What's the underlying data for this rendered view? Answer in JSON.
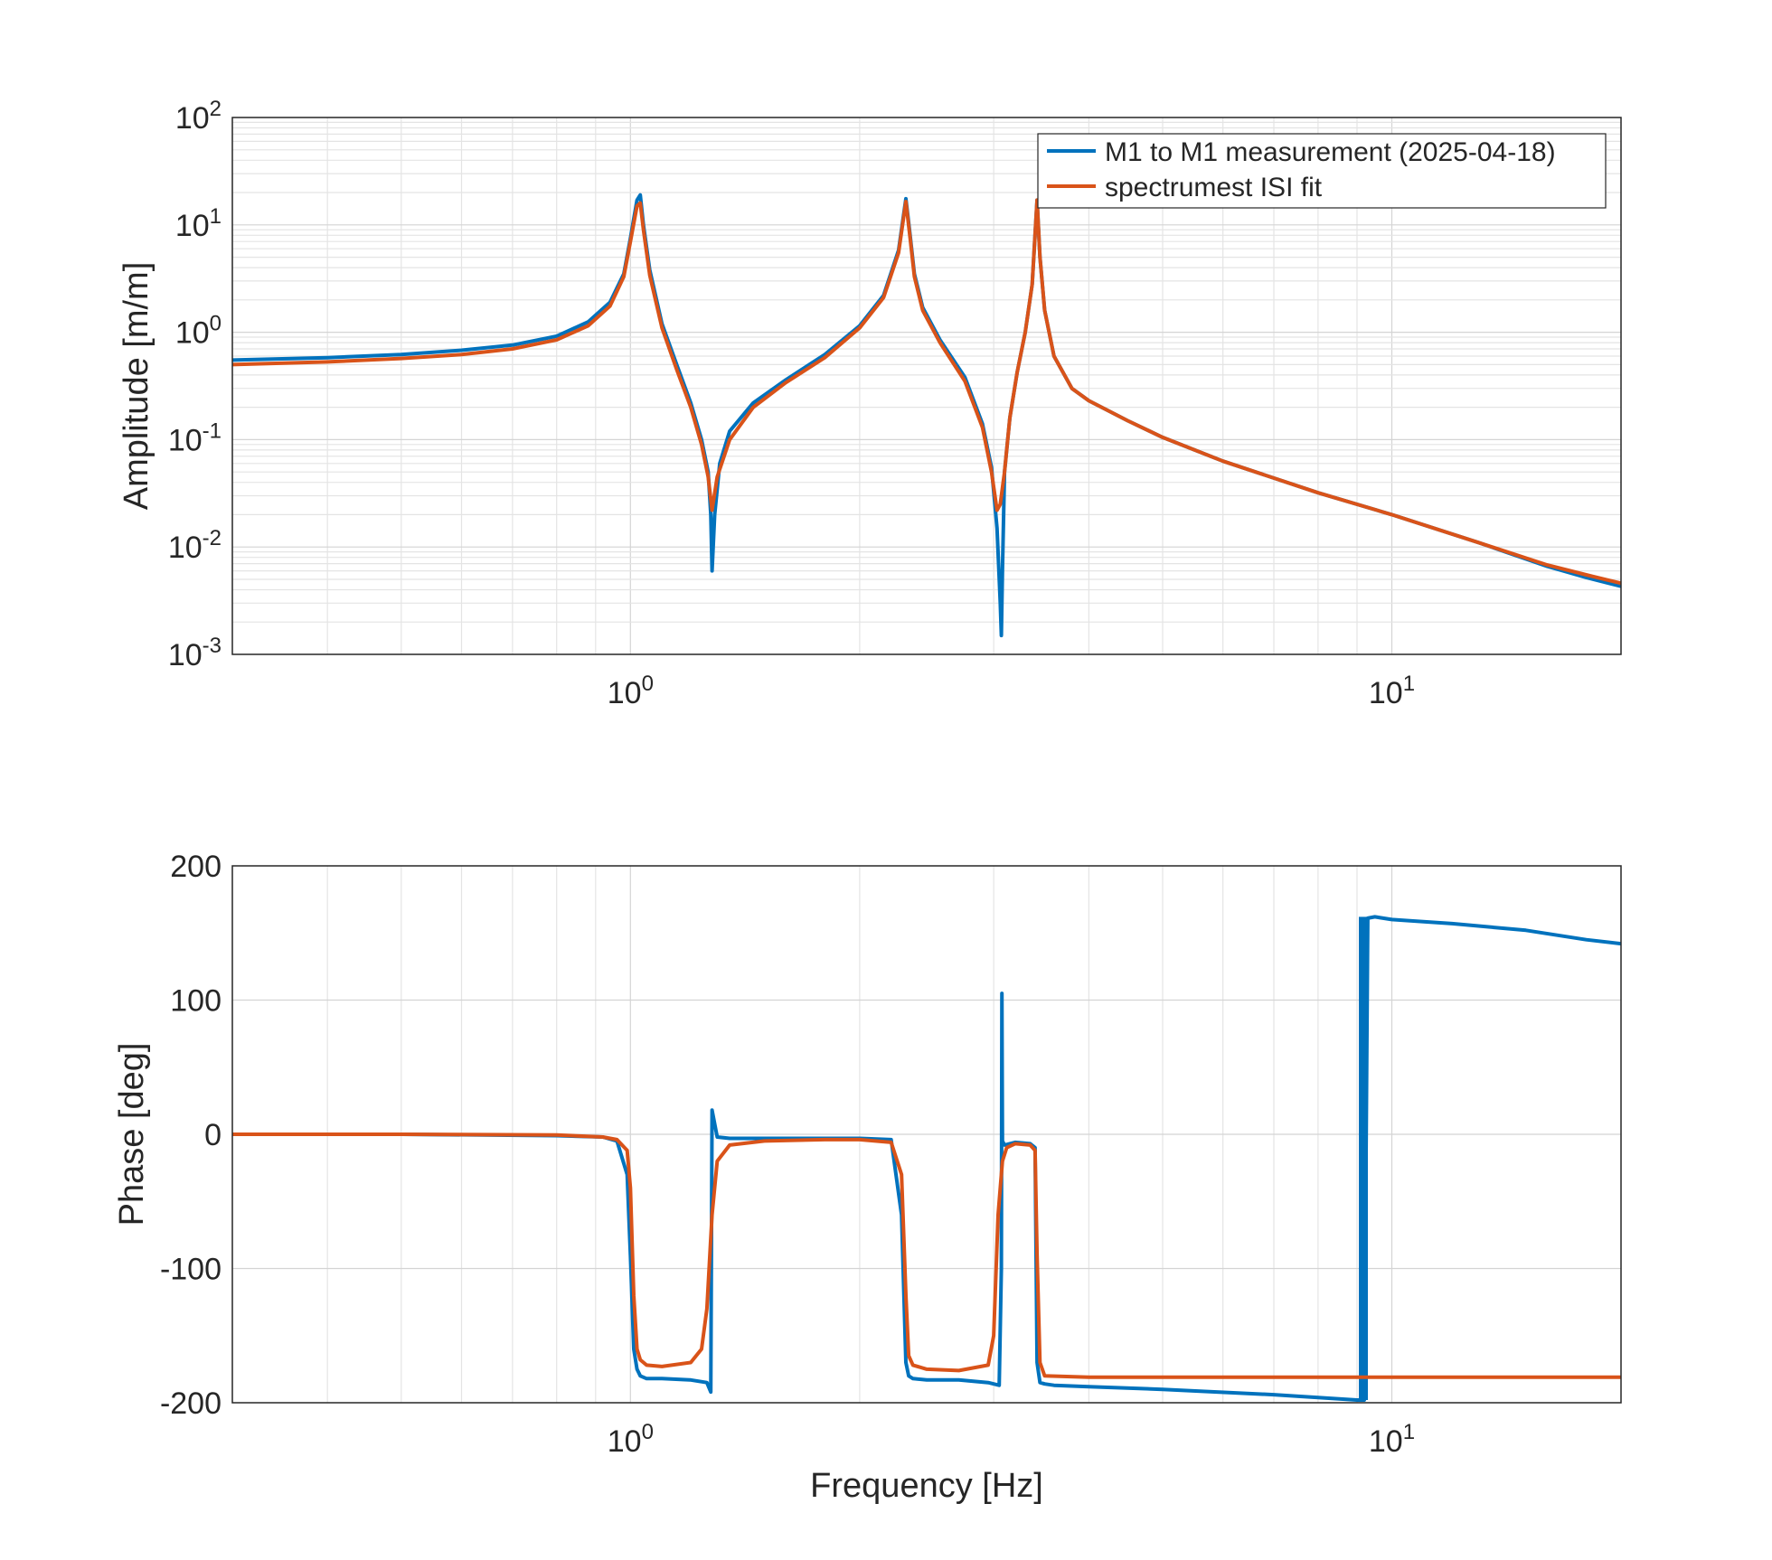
{
  "chart_data": [
    {
      "type": "line",
      "scale": {
        "x": "log",
        "y": "log"
      },
      "xlim": [
        0.3,
        20
      ],
      "ylim": [
        0.001,
        100
      ],
      "xlabel": "",
      "ylabel": "Amplitude [m/m]",
      "xticks": [
        1,
        10
      ],
      "xtick_labels": [
        {
          "base": "10",
          "exp": "0"
        },
        {
          "base": "10",
          "exp": "1"
        }
      ],
      "yticks": [
        0.001,
        0.01,
        0.1,
        1,
        10,
        100
      ],
      "ytick_labels": [
        {
          "base": "10",
          "exp": "-3"
        },
        {
          "base": "10",
          "exp": "-2"
        },
        {
          "base": "10",
          "exp": "-1"
        },
        {
          "base": "10",
          "exp": "0"
        },
        {
          "base": "10",
          "exp": "1"
        },
        {
          "base": "10",
          "exp": "2"
        }
      ],
      "grid": true,
      "minor_grid": true,
      "legend_position": "top-right",
      "series": [
        {
          "name": "M1 to M1 measurement (2025-04-18)",
          "color": "#0072BD",
          "x": [
            0.3,
            0.4,
            0.5,
            0.6,
            0.7,
            0.8,
            0.88,
            0.94,
            0.98,
            1.0,
            1.02,
            1.03,
            1.04,
            1.06,
            1.1,
            1.15,
            1.2,
            1.24,
            1.265,
            1.275,
            1.28,
            1.29,
            1.31,
            1.35,
            1.45,
            1.6,
            1.8,
            2.0,
            2.15,
            2.25,
            2.3,
            2.33,
            2.36,
            2.42,
            2.55,
            2.75,
            2.9,
            2.98,
            3.03,
            3.06,
            3.07,
            3.08,
            3.1,
            3.15,
            3.22,
            3.3,
            3.37,
            3.42,
            3.45,
            3.5,
            3.6,
            3.8,
            4.0,
            4.5,
            5.0,
            6.0,
            8.0,
            10.0,
            13.0,
            16.0,
            18.0,
            20.0
          ],
          "values": [
            0.55,
            0.58,
            0.62,
            0.68,
            0.76,
            0.92,
            1.25,
            1.9,
            3.5,
            7.5,
            17,
            19,
            10,
            3.8,
            1.2,
            0.5,
            0.22,
            0.1,
            0.05,
            0.02,
            0.006,
            0.02,
            0.06,
            0.12,
            0.22,
            0.36,
            0.62,
            1.15,
            2.2,
            5.8,
            17.5,
            8.0,
            3.5,
            1.7,
            0.85,
            0.38,
            0.14,
            0.055,
            0.015,
            0.003,
            0.0015,
            0.006,
            0.05,
            0.16,
            0.42,
            1.0,
            2.8,
            17,
            5.0,
            1.6,
            0.6,
            0.3,
            0.23,
            0.15,
            0.105,
            0.063,
            0.032,
            0.02,
            0.011,
            0.0066,
            0.0052,
            0.0043
          ]
        },
        {
          "name": "spectrumest ISI fit",
          "color": "#D95319",
          "x": [
            0.3,
            0.4,
            0.5,
            0.6,
            0.7,
            0.8,
            0.88,
            0.94,
            0.98,
            1.0,
            1.02,
            1.03,
            1.04,
            1.06,
            1.1,
            1.15,
            1.2,
            1.24,
            1.265,
            1.28,
            1.3,
            1.35,
            1.45,
            1.6,
            1.8,
            2.0,
            2.15,
            2.25,
            2.3,
            2.33,
            2.36,
            2.42,
            2.55,
            2.75,
            2.9,
            2.98,
            3.03,
            3.06,
            3.1,
            3.15,
            3.22,
            3.3,
            3.37,
            3.42,
            3.45,
            3.5,
            3.6,
            3.8,
            4.0,
            4.5,
            5.0,
            6.0,
            8.0,
            10.0,
            13.0,
            16.0,
            18.0,
            20.0
          ],
          "values": [
            0.5,
            0.53,
            0.57,
            0.62,
            0.7,
            0.85,
            1.15,
            1.75,
            3.3,
            7.0,
            15,
            16,
            9,
            3.4,
            1.1,
            0.45,
            0.2,
            0.09,
            0.045,
            0.022,
            0.045,
            0.1,
            0.2,
            0.34,
            0.58,
            1.1,
            2.1,
            5.5,
            16.5,
            7.5,
            3.3,
            1.6,
            0.8,
            0.35,
            0.13,
            0.05,
            0.022,
            0.025,
            0.05,
            0.16,
            0.42,
            1.0,
            2.8,
            17,
            5.0,
            1.6,
            0.6,
            0.3,
            0.23,
            0.15,
            0.105,
            0.063,
            0.032,
            0.02,
            0.011,
            0.0068,
            0.0055,
            0.0046
          ]
        }
      ]
    },
    {
      "type": "line",
      "scale": {
        "x": "log",
        "y": "linear"
      },
      "xlim": [
        0.3,
        20
      ],
      "ylim": [
        -200,
        200
      ],
      "xlabel": "Frequency [Hz]",
      "ylabel": "Phase [deg]",
      "xticks": [
        1,
        10
      ],
      "xtick_labels": [
        {
          "base": "10",
          "exp": "0"
        },
        {
          "base": "10",
          "exp": "1"
        }
      ],
      "yticks": [
        -200,
        -100,
        0,
        100,
        200
      ],
      "ytick_labels": [
        "-200",
        "-100",
        "0",
        "100",
        "200"
      ],
      "grid": true,
      "minor_grid": false,
      "series": [
        {
          "name": "M1 to M1 measurement (2025-04-18)",
          "color": "#0072BD",
          "x": [
            0.3,
            0.5,
            0.8,
            0.92,
            0.96,
            0.99,
            1.0,
            1.01,
            1.02,
            1.03,
            1.05,
            1.1,
            1.2,
            1.26,
            1.275,
            1.28,
            1.3,
            1.35,
            1.5,
            1.8,
            2.0,
            2.2,
            2.27,
            2.3,
            2.32,
            2.35,
            2.45,
            2.7,
            2.95,
            3.05,
            3.07,
            3.075,
            3.08,
            3.1,
            3.2,
            3.35,
            3.4,
            3.42,
            3.45,
            3.5,
            3.6,
            4.0,
            5.0,
            7.0,
            9.0,
            9.2,
            9.3,
            9.5,
            10.0,
            12.0,
            15.0,
            18.0,
            20.0
          ],
          "values": [
            0,
            0,
            -1,
            -2,
            -5,
            -30,
            -90,
            -160,
            -175,
            -180,
            -182,
            -182,
            -183,
            -185,
            -192,
            18,
            -2,
            -3,
            -3,
            -3,
            -3,
            -4,
            -60,
            -170,
            -180,
            -182,
            -183,
            -183,
            -185,
            -187,
            -100,
            105,
            -5,
            -8,
            -6,
            -7,
            -10,
            -170,
            -185,
            -186,
            -187,
            -188,
            -190,
            -194,
            -198,
            -198,
            161,
            162,
            160,
            157,
            152,
            145,
            142
          ]
        },
        {
          "name": "spectrumest ISI fit",
          "color": "#D95319",
          "x": [
            0.3,
            0.5,
            0.8,
            0.92,
            0.96,
            0.99,
            1.0,
            1.01,
            1.02,
            1.03,
            1.05,
            1.1,
            1.2,
            1.24,
            1.26,
            1.28,
            1.3,
            1.35,
            1.5,
            1.8,
            2.0,
            2.2,
            2.27,
            2.3,
            2.32,
            2.35,
            2.45,
            2.7,
            2.95,
            3.0,
            3.04,
            3.08,
            3.12,
            3.2,
            3.35,
            3.4,
            3.42,
            3.45,
            3.5,
            4.0,
            6.0,
            10.0,
            15.0,
            20.0
          ],
          "values": [
            0,
            0,
            -0.5,
            -2,
            -4,
            -12,
            -40,
            -120,
            -160,
            -168,
            -172,
            -173,
            -170,
            -160,
            -130,
            -60,
            -20,
            -8,
            -5,
            -4,
            -4,
            -6,
            -30,
            -120,
            -165,
            -172,
            -175,
            -176,
            -172,
            -150,
            -60,
            -20,
            -10,
            -7,
            -8,
            -12,
            -90,
            -170,
            -180,
            -181,
            -181,
            -181,
            -181,
            -181
          ]
        }
      ]
    }
  ]
}
